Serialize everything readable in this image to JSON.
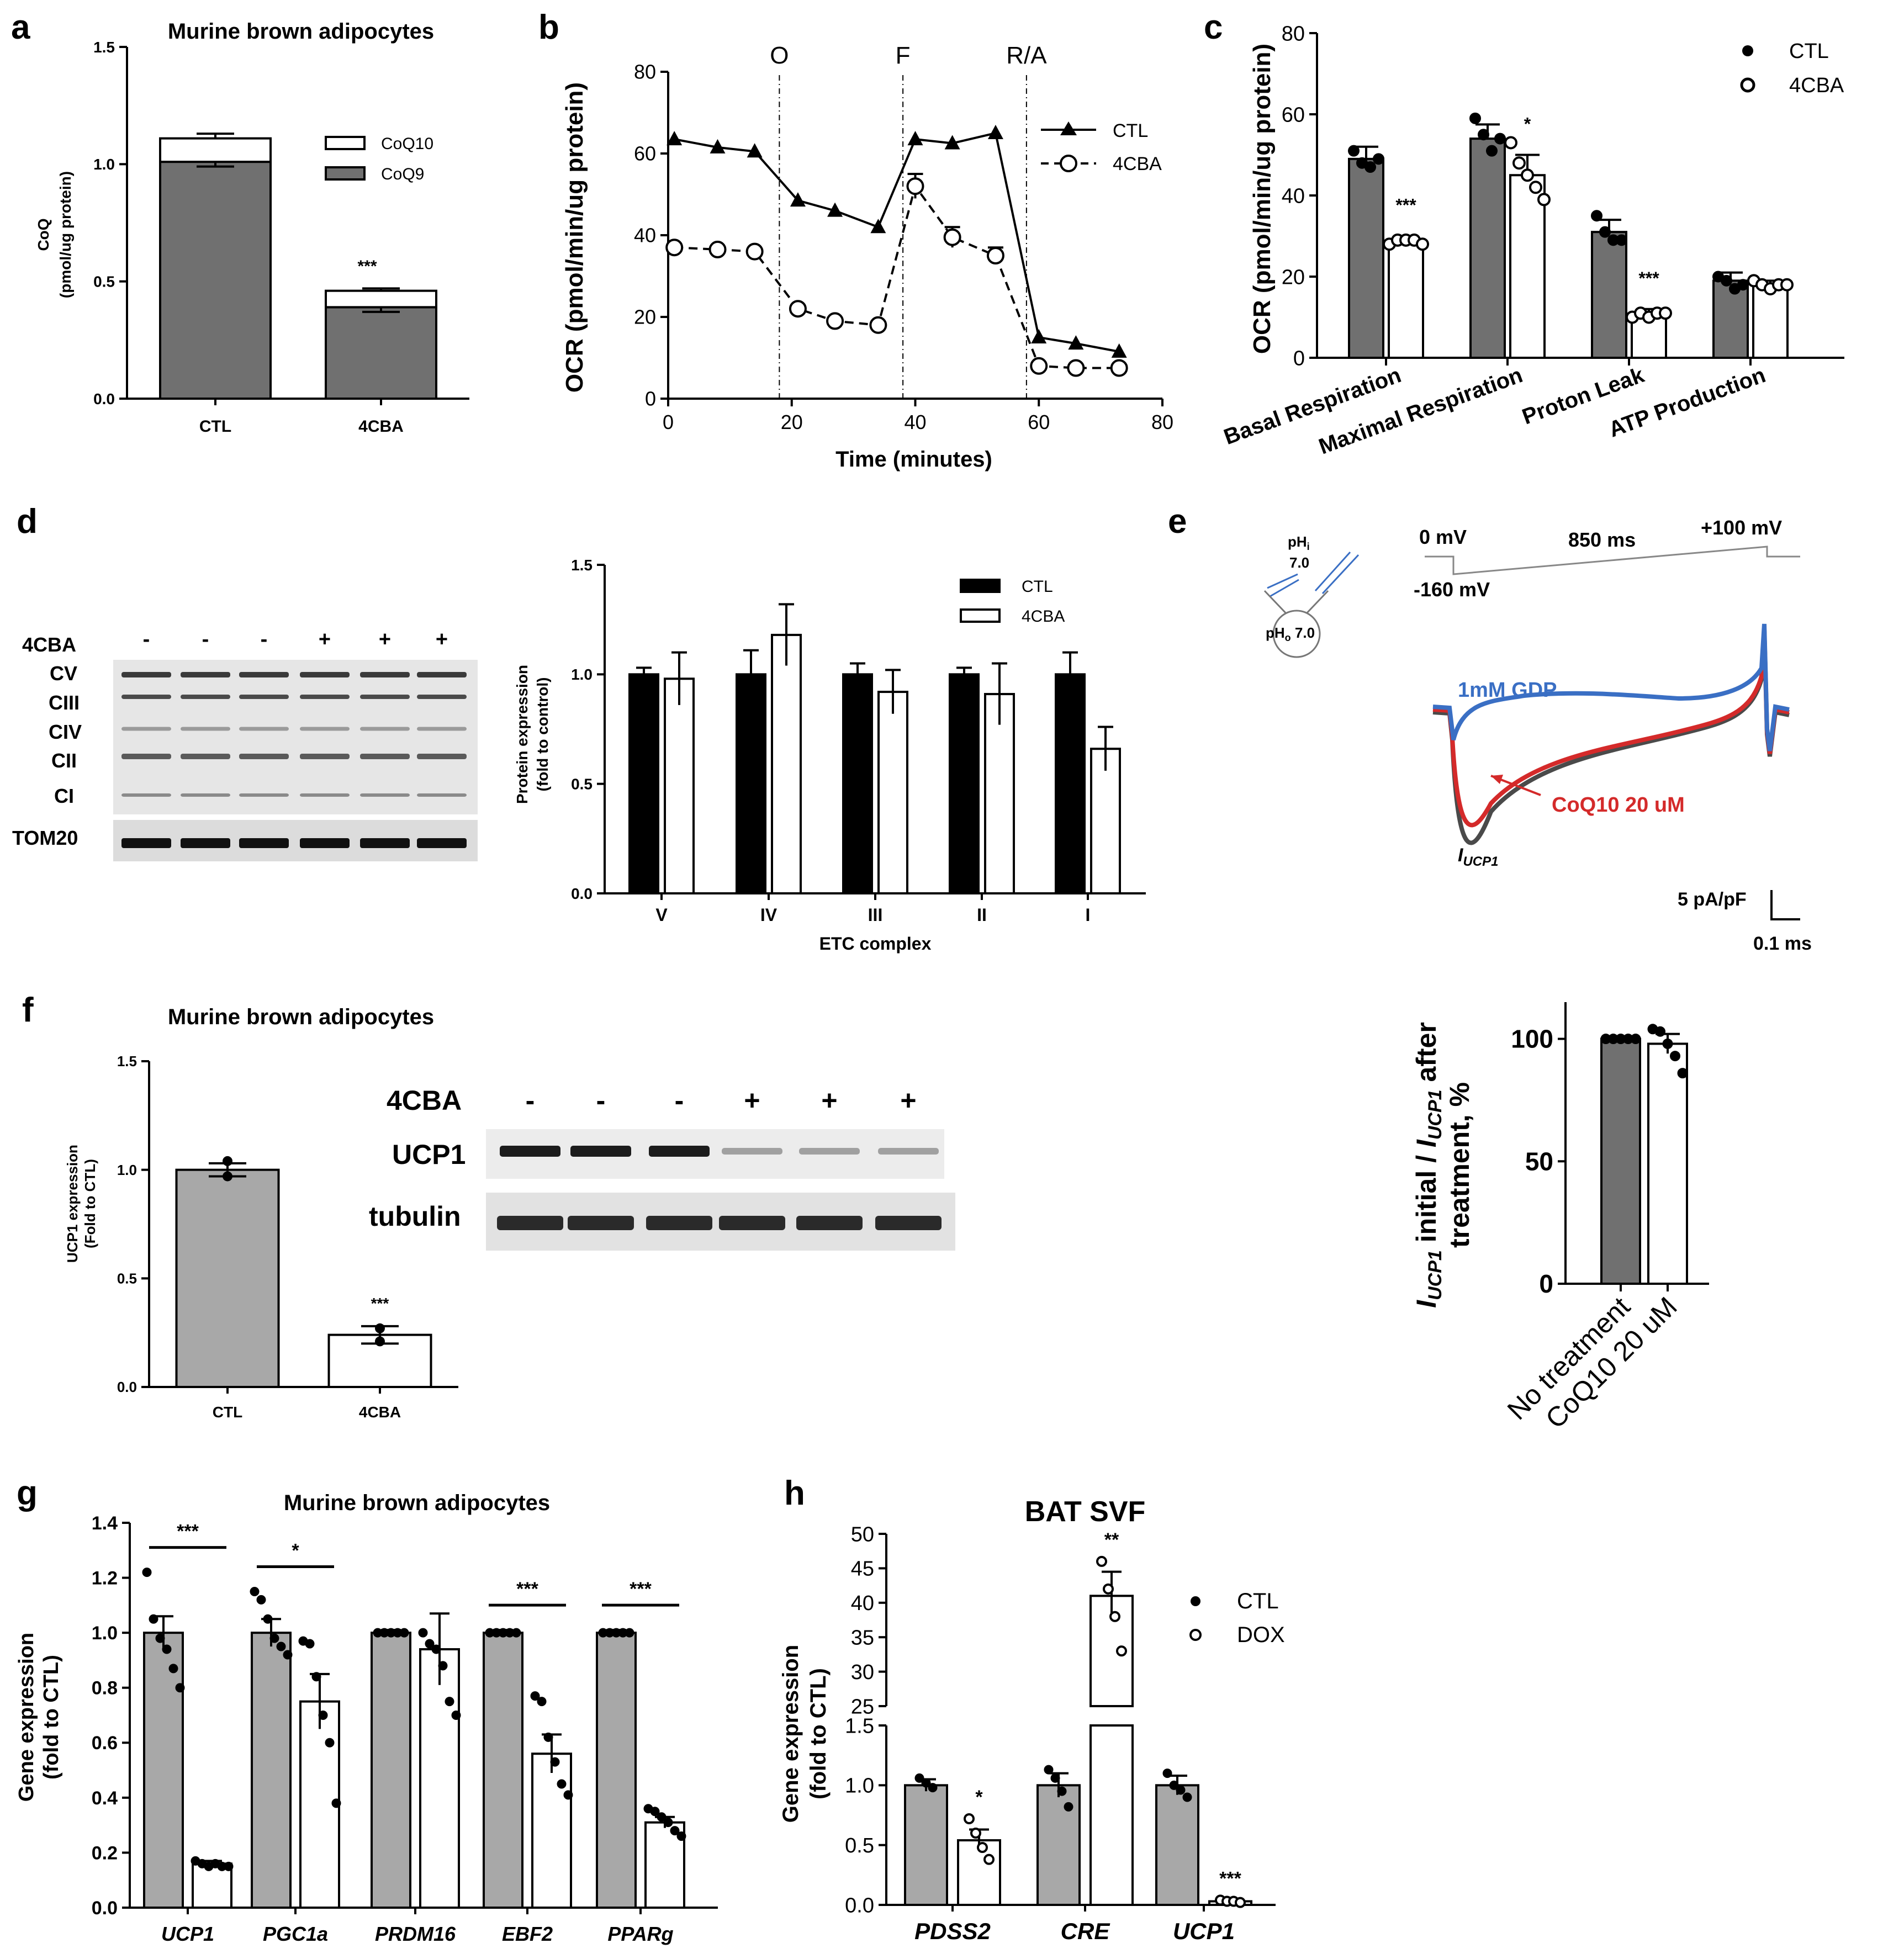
{
  "colors": {
    "ctl_fill": "#707070",
    "ctl_fill_light": "#a8a8a8",
    "black": "#000000",
    "white": "#ffffff",
    "gdp_blue": "#3a6fc4",
    "coq_red": "#d42a2a",
    "iucp_dark": "#4a4a4a"
  },
  "panel_labels": {
    "a": "a",
    "b": "b",
    "c": "c",
    "d": "d",
    "e": "e",
    "f": "f",
    "g": "g",
    "h": "h"
  },
  "chart_data": [
    {
      "id": "a",
      "type": "bar",
      "title": "Murine brown adipocytes",
      "ylabel_lines": [
        "CoQ",
        "(pmol/ug protein)"
      ],
      "categories": [
        "CTL",
        "4CBA"
      ],
      "series": [
        {
          "name": "CoQ9",
          "values": [
            1.01,
            0.39
          ],
          "errors": [
            0.02,
            0.02
          ]
        },
        {
          "name": "CoQ10",
          "values": [
            0.1,
            0.07
          ],
          "errors": [
            0.02,
            0.01
          ]
        }
      ],
      "ylim": [
        0,
        1.5
      ],
      "yticks": [
        "0.0",
        "0.5",
        "1.0",
        "1.5"
      ],
      "legend": [
        {
          "label": "CoQ10",
          "key": "coq10"
        },
        {
          "label": "CoQ9",
          "key": "coq9"
        }
      ],
      "annotations": [
        {
          "text": "***",
          "category": "4CBA"
        }
      ]
    },
    {
      "id": "b",
      "type": "line",
      "xlabel": "Time (minutes)",
      "ylabel": "OCR (pmol/min/ug protein)",
      "xlim": [
        0,
        80
      ],
      "ylim": [
        0,
        80
      ],
      "xticks": [
        "0",
        "20",
        "40",
        "60",
        "80"
      ],
      "yticks": [
        "0",
        "20",
        "40",
        "60",
        "80"
      ],
      "series": [
        {
          "name": "CTL",
          "x": [
            1,
            8,
            14,
            21,
            27,
            34,
            40,
            46,
            53,
            60,
            66,
            73
          ],
          "y": [
            63.5,
            61.5,
            60.5,
            48.5,
            46,
            42,
            63.5,
            62.5,
            65,
            15,
            13.5,
            11.5
          ]
        },
        {
          "name": "4CBA",
          "x": [
            1,
            8,
            14,
            21,
            27,
            34,
            40,
            46,
            53,
            60,
            66,
            73
          ],
          "y": [
            37,
            36.5,
            36,
            22,
            19,
            18,
            52,
            39.5,
            35,
            8,
            7.5,
            7.5
          ],
          "errors": [
            0,
            0,
            0,
            0,
            0,
            0,
            3,
            2.5,
            2,
            0,
            0,
            0
          ]
        }
      ],
      "injections": [
        {
          "label": "O",
          "x": 18
        },
        {
          "label": "F",
          "x": 38
        },
        {
          "label": "R/A",
          "x": 58
        }
      ]
    },
    {
      "id": "c",
      "type": "bar",
      "ylabel": "OCR (pmol/min/ug protein)",
      "categories": [
        "Basal Respiration",
        "Maximal Respiration",
        "Proton Leak",
        "ATP Production"
      ],
      "series": [
        {
          "name": "CTL",
          "values": [
            49,
            54,
            31,
            19
          ],
          "errors": [
            3,
            3.5,
            3,
            2
          ]
        },
        {
          "name": "4CBA",
          "values": [
            29,
            45,
            11,
            18
          ],
          "errors": [
            1,
            5,
            1,
            1
          ]
        }
      ],
      "ylim": [
        0,
        80
      ],
      "yticks": [
        "0",
        "20",
        "40",
        "60",
        "80"
      ],
      "legend": [
        {
          "label": "CTL",
          "key": "ctl"
        },
        {
          "label": "4CBA",
          "key": "cba"
        }
      ],
      "annotations": [
        {
          "text": "***",
          "category": "Basal Respiration"
        },
        {
          "text": "*",
          "category": "Maximal Respiration"
        },
        {
          "text": "***",
          "category": "Proton Leak"
        }
      ]
    },
    {
      "id": "d",
      "type": "bar",
      "xlabel": "ETC complex",
      "ylabel_lines": [
        "Protein expression",
        "(fold to control)"
      ],
      "categories": [
        "V",
        "IV",
        "III",
        "II",
        "I"
      ],
      "series": [
        {
          "name": "CTL",
          "values": [
            1.0,
            1.0,
            1.0,
            1.0,
            1.0
          ],
          "errors": [
            0.03,
            0.11,
            0.05,
            0.03,
            0.1
          ]
        },
        {
          "name": "4CBA",
          "values": [
            0.98,
            1.18,
            0.92,
            0.91,
            0.66
          ],
          "errors": [
            0.12,
            0.14,
            0.1,
            0.14,
            0.1
          ]
        }
      ],
      "ylim": [
        0,
        1.5
      ],
      "yticks": [
        "0.0",
        "0.5",
        "1.0",
        "1.5"
      ],
      "legend": [
        {
          "label": "CTL",
          "key": "ctl"
        },
        {
          "label": "4CBA",
          "key": "cba"
        }
      ]
    },
    {
      "id": "e_bar",
      "type": "bar",
      "ylabel_parts": [
        "I",
        "UCP1",
        " initial / ",
        "I",
        "UCP1",
        " after"
      ],
      "ylabel_line2": "treatment, %",
      "categories": [
        "No treatment",
        "CoQ10 20 uM"
      ],
      "values": [
        100,
        98
      ],
      "errors": [
        0,
        4
      ],
      "points": [
        [
          100,
          100,
          100,
          100,
          100
        ],
        [
          104,
          103,
          98,
          93,
          86
        ]
      ],
      "ylim": [
        0,
        115
      ],
      "yticks": [
        "0",
        "50",
        "100"
      ]
    },
    {
      "id": "f",
      "type": "bar",
      "title": "Murine brown adipocytes",
      "ylabel_lines": [
        "UCP1 expression",
        "(Fold to CTL)"
      ],
      "categories": [
        "CTL",
        "4CBA"
      ],
      "values": [
        1.0,
        0.24
      ],
      "errors": [
        0.03,
        0.04
      ],
      "points": [
        [
          1.04,
          0.97
        ],
        [
          0.27,
          0.21
        ]
      ],
      "ylim": [
        0,
        1.5
      ],
      "yticks": [
        "0.0",
        "0.5",
        "1.0",
        "1.5"
      ],
      "annotations": [
        {
          "text": "***",
          "category": "4CBA"
        }
      ]
    },
    {
      "id": "g",
      "type": "bar",
      "title": "Murine brown adipocytes",
      "ylabel_lines": [
        "Gene expression",
        "(fold to CTL)"
      ],
      "categories": [
        "UCP1",
        "PGC1a",
        "PRDM16",
        "EBF2",
        "PPARg"
      ],
      "series": [
        {
          "name": "CTL",
          "values": [
            1.0,
            1.0,
            1.0,
            1.0,
            1.0
          ],
          "errors": [
            0.06,
            0.05,
            0.01,
            0.01,
            0.01
          ]
        },
        {
          "name": "4CBA",
          "values": [
            0.16,
            0.75,
            0.94,
            0.56,
            0.31
          ],
          "errors": [
            0.01,
            0.1,
            0.13,
            0.07,
            0.02
          ]
        }
      ],
      "ylim": [
        0,
        1.4
      ],
      "yticks": [
        "0.0",
        "0.2",
        "0.4",
        "0.6",
        "0.8",
        "1.0",
        "1.2",
        "1.4"
      ],
      "annotations": [
        {
          "text": "***",
          "category": "UCP1"
        },
        {
          "text": "*",
          "category": "PGC1a"
        },
        {
          "text": "***",
          "category": "EBF2"
        },
        {
          "text": "***",
          "category": "PPARg"
        }
      ]
    },
    {
      "id": "h",
      "type": "bar",
      "title": "BAT SVF",
      "ylabel_lines": [
        "Gene expression",
        "(fold to CTL)"
      ],
      "categories": [
        "PDSS2",
        "CRE",
        "UCP1"
      ],
      "series": [
        {
          "name": "CTL",
          "values": [
            1.0,
            1.0,
            1.0
          ],
          "errors": [
            0.05,
            0.1,
            0.08
          ]
        },
        {
          "name": "DOX",
          "values": [
            0.54,
            41,
            0.03
          ],
          "errors": [
            0.09,
            3.5,
            0.01
          ]
        }
      ],
      "ylim_lower": [
        0,
        1.5
      ],
      "ylim_upper": [
        25,
        50
      ],
      "yticks_lower": [
        "0.0",
        "0.5",
        "1.0",
        "1.5"
      ],
      "yticks_upper": [
        "25",
        "30",
        "35",
        "40",
        "45",
        "50"
      ],
      "legend": [
        {
          "label": "CTL",
          "key": "ctl"
        },
        {
          "label": "DOX",
          "key": "dox"
        }
      ],
      "annotations": [
        {
          "text": "*",
          "category": "PDSS2"
        },
        {
          "text": "**",
          "category": "CRE"
        },
        {
          "text": "***",
          "category": "UCP1"
        }
      ]
    }
  ],
  "blot_d": {
    "treatment_label": "4CBA",
    "signs": [
      "-",
      "-",
      "-",
      "+",
      "+",
      "+"
    ],
    "rows": [
      "CV",
      "CIII",
      "CIV",
      "CII",
      "CI",
      "TOM20"
    ]
  },
  "blot_f": {
    "treatment_label": "4CBA",
    "signs": [
      "-",
      "-",
      "-",
      "+",
      "+",
      "+"
    ],
    "rows": [
      "UCP1",
      "tubulin"
    ]
  },
  "patch": {
    "ph_i_label": "pH",
    "ph_i_sub": "i",
    "ph_i_value": "7.0",
    "ph_o_label": "pH",
    "ph_o_sub": "o",
    "ph_o_rest": " 7.0",
    "v_hold": "0 mV",
    "v_start": "-160 mV",
    "duration": "850 ms",
    "v_end": "+100 mV",
    "trace_gdp": "1mM GDP",
    "trace_coq": "CoQ10 20 uM",
    "trace_i": "I",
    "trace_i_sub": "UCP1",
    "scale_y": "5 pA/pF",
    "scale_x": "0.1 ms"
  }
}
